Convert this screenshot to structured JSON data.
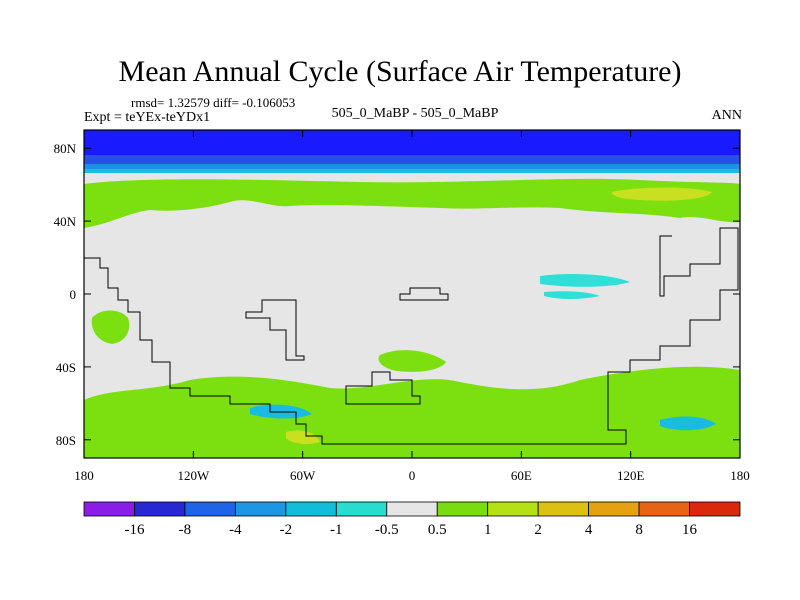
{
  "title": "Mean Annual Cycle (Surface Air Temperature)",
  "stats_text": "rmsd= 1.32579  diff= -0.106053",
  "experiment_label": "Expt = teYEx-teYDx1",
  "center_label": "505_0_MaBP - 505_0_MaBP",
  "season_label": "ANN",
  "colors": {
    "land_outline": "#000000",
    "neutral": "#e6e6e6",
    "n1": "#1a1aff",
    "n2": "#2850e8",
    "n3": "#1e90e6",
    "n4": "#18bce0",
    "n5": "#30e0d8",
    "p1": "#7ce010",
    "p2": "#c8e020"
  },
  "chart_data": {
    "type": "heatmap",
    "title": "Mean Annual Cycle (Surface Air Temperature)",
    "variable": "Surface Air Temperature difference",
    "x_ticks": [
      "180",
      "120W",
      "60W",
      "0",
      "60E",
      "120E",
      "180"
    ],
    "x_tick_values": [
      -180,
      -120,
      -60,
      0,
      60,
      120,
      180
    ],
    "y_ticks": [
      "80N",
      "40N",
      "0",
      "40S",
      "80S"
    ],
    "y_tick_values": [
      80,
      40,
      0,
      -40,
      -80
    ],
    "xlim": [
      -180,
      180
    ],
    "ylim": [
      -90,
      90
    ],
    "colorbar": {
      "labels": [
        "-16",
        "-8",
        "-4",
        "-2",
        "-1",
        "-0.5",
        "0.5",
        "1",
        "2",
        "4",
        "8",
        "16"
      ],
      "boundaries": [
        -16,
        -8,
        -4,
        -2,
        -1,
        -0.5,
        0.5,
        1,
        2,
        4,
        8,
        16
      ],
      "colors": [
        "#8a1ee6",
        "#2828d2",
        "#1e64e6",
        "#1e96e6",
        "#14bcdc",
        "#28dcd0",
        "#e6e6e6",
        "#78dc10",
        "#b4e014",
        "#dcc014",
        "#e6a014",
        "#e66414",
        "#dc280a"
      ]
    },
    "regions": [
      {
        "name": "arctic-strong-cooling",
        "lat": [
          72,
          90
        ],
        "value": -9
      },
      {
        "name": "arctic-moderate-cooling",
        "lat": [
          67,
          72
        ],
        "value": -5
      },
      {
        "name": "subarctic-cooling",
        "lat": [
          64,
          67
        ],
        "value": -2.5
      },
      {
        "name": "subpolar-weak-cooling",
        "lat": [
          61,
          64
        ],
        "value": -1.5
      },
      {
        "name": "northern-midlatitude-warming",
        "lat": [
          40,
          58
        ],
        "value": 0.8
      },
      {
        "name": "north-pacific-warm-spot",
        "lat": [
          42,
          54
        ],
        "lon": [
          75,
          150
        ],
        "value": 1.5
      },
      {
        "name": "tropical-neutral",
        "lat": [
          -40,
          38
        ],
        "value": 0
      },
      {
        "name": "south-pacific-warming",
        "lat": [
          -90,
          -30
        ],
        "value": 0.8
      }
    ]
  }
}
